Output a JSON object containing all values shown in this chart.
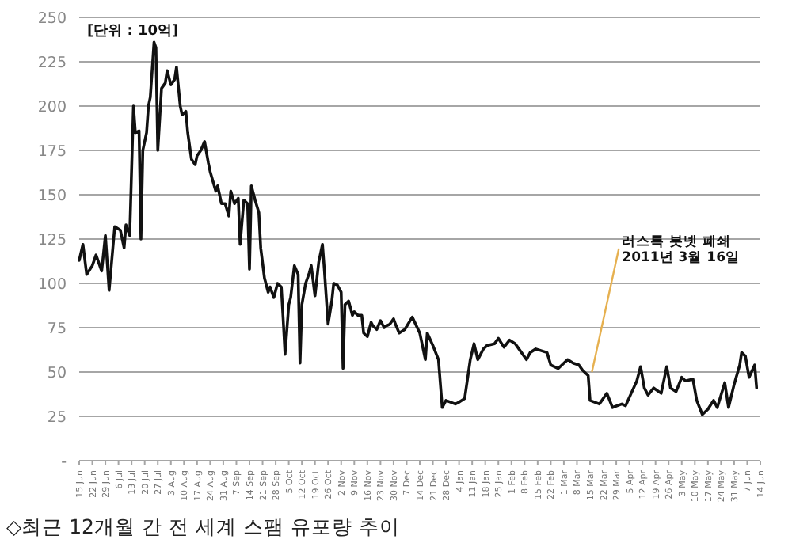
{
  "chart_data": {
    "type": "line",
    "title": "◇최근 12개월 간 전 세계 스팸 유포량 추이",
    "annotations": [
      "[단위 : 10억]",
      {
        "text": "러스톡 봇넷 폐쇄 2011년 3월 16일",
        "x": "2011-03-16",
        "y": 50
      }
    ],
    "grid": "y",
    "marker": "none",
    "line_style": "solid",
    "ylim": [
      0,
      250
    ],
    "yticks": [
      {
        "value": 0,
        "label": "-"
      },
      25,
      50,
      75,
      100,
      125,
      150,
      175,
      200,
      225,
      250
    ],
    "xlim": [
      "2010-06-15",
      "2011-06-14"
    ],
    "xticks": [
      {
        "value": "2010-06-15",
        "label": "15 Jun"
      },
      {
        "value": "2010-06-22",
        "label": "22 Jun"
      },
      {
        "value": "2010-06-29",
        "label": "29 Jun"
      },
      {
        "value": "2010-07-06",
        "label": "6 Jul"
      },
      {
        "value": "2010-07-13",
        "label": "13 Jul"
      },
      {
        "value": "2010-07-20",
        "label": "20 Jul"
      },
      {
        "value": "2010-07-27",
        "label": "27 Jul"
      },
      {
        "value": "2010-08-03",
        "label": "3 Aug"
      },
      {
        "value": "2010-08-10",
        "label": "10 Aug"
      },
      {
        "value": "2010-08-17",
        "label": "17 Aug"
      },
      {
        "value": "2010-08-24",
        "label": "24 Aug"
      },
      {
        "value": "2010-08-31",
        "label": "31 Aug"
      },
      {
        "value": "2010-09-07",
        "label": "7 Sep"
      },
      {
        "value": "2010-09-14",
        "label": "14 Sep"
      },
      {
        "value": "2010-09-21",
        "label": "21 Sep"
      },
      {
        "value": "2010-09-28",
        "label": "28 Sep"
      },
      {
        "value": "2010-10-05",
        "label": "5 Oct"
      },
      {
        "value": "2010-10-12",
        "label": "12 Oct"
      },
      {
        "value": "2010-10-19",
        "label": "19 Oct"
      },
      {
        "value": "2010-10-26",
        "label": "26 Oct"
      },
      {
        "value": "2010-11-02",
        "label": "2 Nov"
      },
      {
        "value": "2010-11-09",
        "label": "9 Nov"
      },
      {
        "value": "2010-11-16",
        "label": "16 Nov"
      },
      {
        "value": "2010-11-23",
        "label": "23 Nov"
      },
      {
        "value": "2010-11-30",
        "label": "30 Nov"
      },
      {
        "value": "2010-12-07",
        "label": "7 Dec"
      },
      {
        "value": "2010-12-14",
        "label": "14 Dec"
      },
      {
        "value": "2010-12-21",
        "label": "21 Dec"
      },
      {
        "value": "2010-12-28",
        "label": "28 Dec"
      },
      {
        "value": "2011-01-04",
        "label": "4 Jan"
      },
      {
        "value": "2011-01-11",
        "label": "11 Jan"
      },
      {
        "value": "2011-01-18",
        "label": "18 Jan"
      },
      {
        "value": "2011-01-25",
        "label": "25 Jan"
      },
      {
        "value": "2011-02-01",
        "label": "1 Feb"
      },
      {
        "value": "2011-02-08",
        "label": "8 Feb"
      },
      {
        "value": "2011-02-15",
        "label": "15 Feb"
      },
      {
        "value": "2011-02-22",
        "label": "22 Feb"
      },
      {
        "value": "2011-03-01",
        "label": "1 Mar"
      },
      {
        "value": "2011-03-08",
        "label": "8 Mar"
      },
      {
        "value": "2011-03-15",
        "label": "15 Mar"
      },
      {
        "value": "2011-03-22",
        "label": "22 Mar"
      },
      {
        "value": "2011-03-29",
        "label": "29 Mar"
      },
      {
        "value": "2011-04-05",
        "label": "5 Apr"
      },
      {
        "value": "2011-04-12",
        "label": "12 Apr"
      },
      {
        "value": "2011-04-19",
        "label": "19 Apr"
      },
      {
        "value": "2011-04-26",
        "label": "26 Apr"
      },
      {
        "value": "2011-05-03",
        "label": "3 May"
      },
      {
        "value": "2011-05-10",
        "label": "10 May"
      },
      {
        "value": "2011-05-17",
        "label": "17 May"
      },
      {
        "value": "2011-05-24",
        "label": "24 May"
      },
      {
        "value": "2011-05-31",
        "label": "31 May"
      },
      {
        "value": "2011-06-07",
        "label": "7 Jun"
      },
      {
        "value": "2011-06-14",
        "label": "14 Jun"
      }
    ],
    "series": [
      {
        "color": "#111111",
        "x": [
          "2010-06-15",
          "2010-06-17",
          "2010-06-19",
          "2010-06-22",
          "2010-06-24",
          "2010-06-27",
          "2010-06-29",
          "2010-07-01",
          "2010-07-03",
          "2010-07-04",
          "2010-07-07",
          "2010-07-09",
          "2010-07-10",
          "2010-07-12",
          "2010-07-14",
          "2010-07-15",
          "2010-07-17",
          "2010-07-18",
          "2010-07-19",
          "2010-07-21",
          "2010-07-22",
          "2010-07-23",
          "2010-07-25",
          "2010-07-26",
          "2010-07-27",
          "2010-07-29",
          "2010-07-31",
          "2010-08-01",
          "2010-08-03",
          "2010-08-05",
          "2010-08-06",
          "2010-08-08",
          "2010-08-09",
          "2010-08-11",
          "2010-08-12",
          "2010-08-14",
          "2010-08-16",
          "2010-08-17",
          "2010-08-19",
          "2010-08-21",
          "2010-08-23",
          "2010-08-24",
          "2010-08-27",
          "2010-08-28",
          "2010-08-30",
          "2010-09-01",
          "2010-09-03",
          "2010-09-04",
          "2010-09-06",
          "2010-09-08",
          "2010-09-09",
          "2010-09-11",
          "2010-09-13",
          "2010-09-14",
          "2010-09-15",
          "2010-09-17",
          "2010-09-19",
          "2010-09-20",
          "2010-09-22",
          "2010-09-24",
          "2010-09-25",
          "2010-09-27",
          "2010-09-29",
          "2010-10-01",
          "2010-10-02",
          "2010-10-03",
          "2010-10-05",
          "2010-10-06",
          "2010-10-08",
          "2010-10-10",
          "2010-10-11",
          "2010-10-12",
          "2010-10-14",
          "2010-10-16",
          "2010-10-17",
          "2010-10-19",
          "2010-10-21",
          "2010-10-23",
          "2010-10-24",
          "2010-10-26",
          "2010-10-28",
          "2010-10-29",
          "2010-10-31",
          "2010-11-02",
          "2010-11-03",
          "2010-11-04",
          "2010-11-06",
          "2010-11-08",
          "2010-11-09",
          "2010-11-11",
          "2010-11-13",
          "2010-11-14",
          "2010-11-16",
          "2010-11-18",
          "2010-11-19",
          "2010-11-21",
          "2010-11-23",
          "2010-11-25",
          "2010-11-26",
          "2010-11-28",
          "2010-11-30",
          "2010-12-01",
          "2010-12-03",
          "2010-12-06",
          "2010-12-10",
          "2010-12-14",
          "2010-12-17",
          "2010-12-18",
          "2010-12-21",
          "2010-12-24",
          "2010-12-26",
          "2010-12-28",
          "2011-01-02",
          "2011-01-04",
          "2011-01-07",
          "2011-01-10",
          "2011-01-12",
          "2011-01-14",
          "2011-01-17",
          "2011-01-19",
          "2011-01-23",
          "2011-01-25",
          "2011-01-28",
          "2011-01-31",
          "2011-02-03",
          "2011-02-05",
          "2011-02-09",
          "2011-02-11",
          "2011-02-14",
          "2011-02-17",
          "2011-02-20",
          "2011-02-22",
          "2011-02-26",
          "2011-02-28",
          "2011-03-03",
          "2011-03-06",
          "2011-03-09",
          "2011-03-11",
          "2011-03-14",
          "2011-03-15",
          "2011-03-20",
          "2011-03-24",
          "2011-03-27",
          "2011-04-01",
          "2011-04-03",
          "2011-04-06",
          "2011-04-09",
          "2011-04-11",
          "2011-04-13",
          "2011-04-15",
          "2011-04-18",
          "2011-04-22",
          "2011-04-25",
          "2011-04-27",
          "2011-04-30",
          "2011-05-03",
          "2011-05-05",
          "2011-05-09",
          "2011-05-11",
          "2011-05-14",
          "2011-05-17",
          "2011-05-20",
          "2011-05-22",
          "2011-05-26",
          "2011-05-28",
          "2011-05-31",
          "2011-06-03",
          "2011-06-04",
          "2011-06-06",
          "2011-06-08",
          "2011-06-11",
          "2011-06-12"
        ],
        "values": [
          113,
          122,
          105,
          110,
          116,
          107,
          127,
          96,
          120,
          132,
          130,
          120,
          133,
          127,
          200,
          185,
          186,
          125,
          175,
          185,
          200,
          205,
          236,
          233,
          175,
          210,
          213,
          220,
          212,
          215,
          222,
          200,
          195,
          197,
          185,
          170,
          167,
          172,
          175,
          180,
          168,
          163,
          152,
          155,
          145,
          145,
          138,
          152,
          145,
          148,
          122,
          147,
          145,
          108,
          155,
          147,
          140,
          120,
          103,
          95,
          98,
          92,
          100,
          98,
          80,
          60,
          88,
          92,
          110,
          105,
          55,
          88,
          100,
          106,
          110,
          93,
          112,
          122,
          108,
          77,
          90,
          100,
          99,
          95,
          52,
          88,
          90,
          82,
          84,
          82,
          82,
          72,
          70,
          78,
          76,
          74,
          79,
          75,
          76,
          77,
          80,
          77,
          72,
          74,
          81,
          72,
          57,
          72,
          65,
          57,
          30,
          34,
          32,
          33,
          35,
          57,
          66,
          57,
          63,
          65,
          66,
          69,
          64,
          68,
          66,
          63,
          57,
          61,
          63,
          62,
          61,
          54,
          52,
          54,
          57,
          55,
          54,
          51,
          48,
          34,
          32,
          38,
          30,
          32,
          31,
          38,
          45,
          53,
          41,
          37,
          41,
          38,
          53,
          41,
          39,
          47,
          45,
          46,
          34,
          26,
          29,
          34,
          30,
          44,
          30,
          43,
          54,
          61,
          59,
          47,
          54,
          41
        ]
      }
    ]
  }
}
